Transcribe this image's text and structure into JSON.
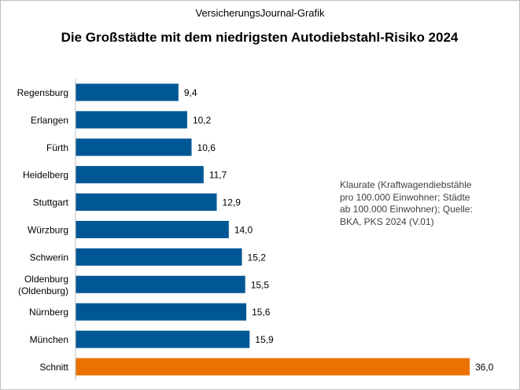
{
  "chart_data": {
    "type": "bar",
    "orientation": "horizontal",
    "source_label": "VersicherungsJournal-Grafik",
    "title": "Die Großstädte mit dem niedrigsten Autodiebstahl-Risiko 2024",
    "note": "Klaurate (Kraftwagendiebstähle\npro 100.000 Einwohner; Städte\nab 100.000 Einwohner); Quelle:\nBKA, PKS 2024 (V.01)",
    "categories": [
      "Regensburg",
      "Erlangen",
      "Fürth",
      "Heidelberg",
      "Stuttgart",
      "Würzburg",
      "Schwerin",
      "Oldenburg (Oldenburg)",
      "Nürnberg",
      "München",
      "Schnitt"
    ],
    "category_lines": [
      [
        "Regensburg"
      ],
      [
        "Erlangen"
      ],
      [
        "Fürth"
      ],
      [
        "Heidelberg"
      ],
      [
        "Stuttgart"
      ],
      [
        "Würzburg"
      ],
      [
        "Schwerin"
      ],
      [
        "Oldenburg",
        "(Oldenburg)"
      ],
      [
        "Nürnberg"
      ],
      [
        "München"
      ],
      [
        "Schnitt"
      ]
    ],
    "values": [
      9.4,
      10.2,
      10.6,
      11.7,
      12.9,
      14.0,
      15.2,
      15.5,
      15.6,
      15.9,
      36.0
    ],
    "value_labels": [
      "9,4",
      "10,2",
      "10,6",
      "11,7",
      "12,9",
      "14,0",
      "15,2",
      "15,5",
      "15,6",
      "15,9",
      "36,0"
    ],
    "xlim": [
      0,
      36
    ],
    "grid": false,
    "legend": "none",
    "colors": {
      "bar": "#005795",
      "highlight": "#EB7100",
      "axis": "#bfbfbf"
    },
    "highlight_category": "Schnitt"
  }
}
